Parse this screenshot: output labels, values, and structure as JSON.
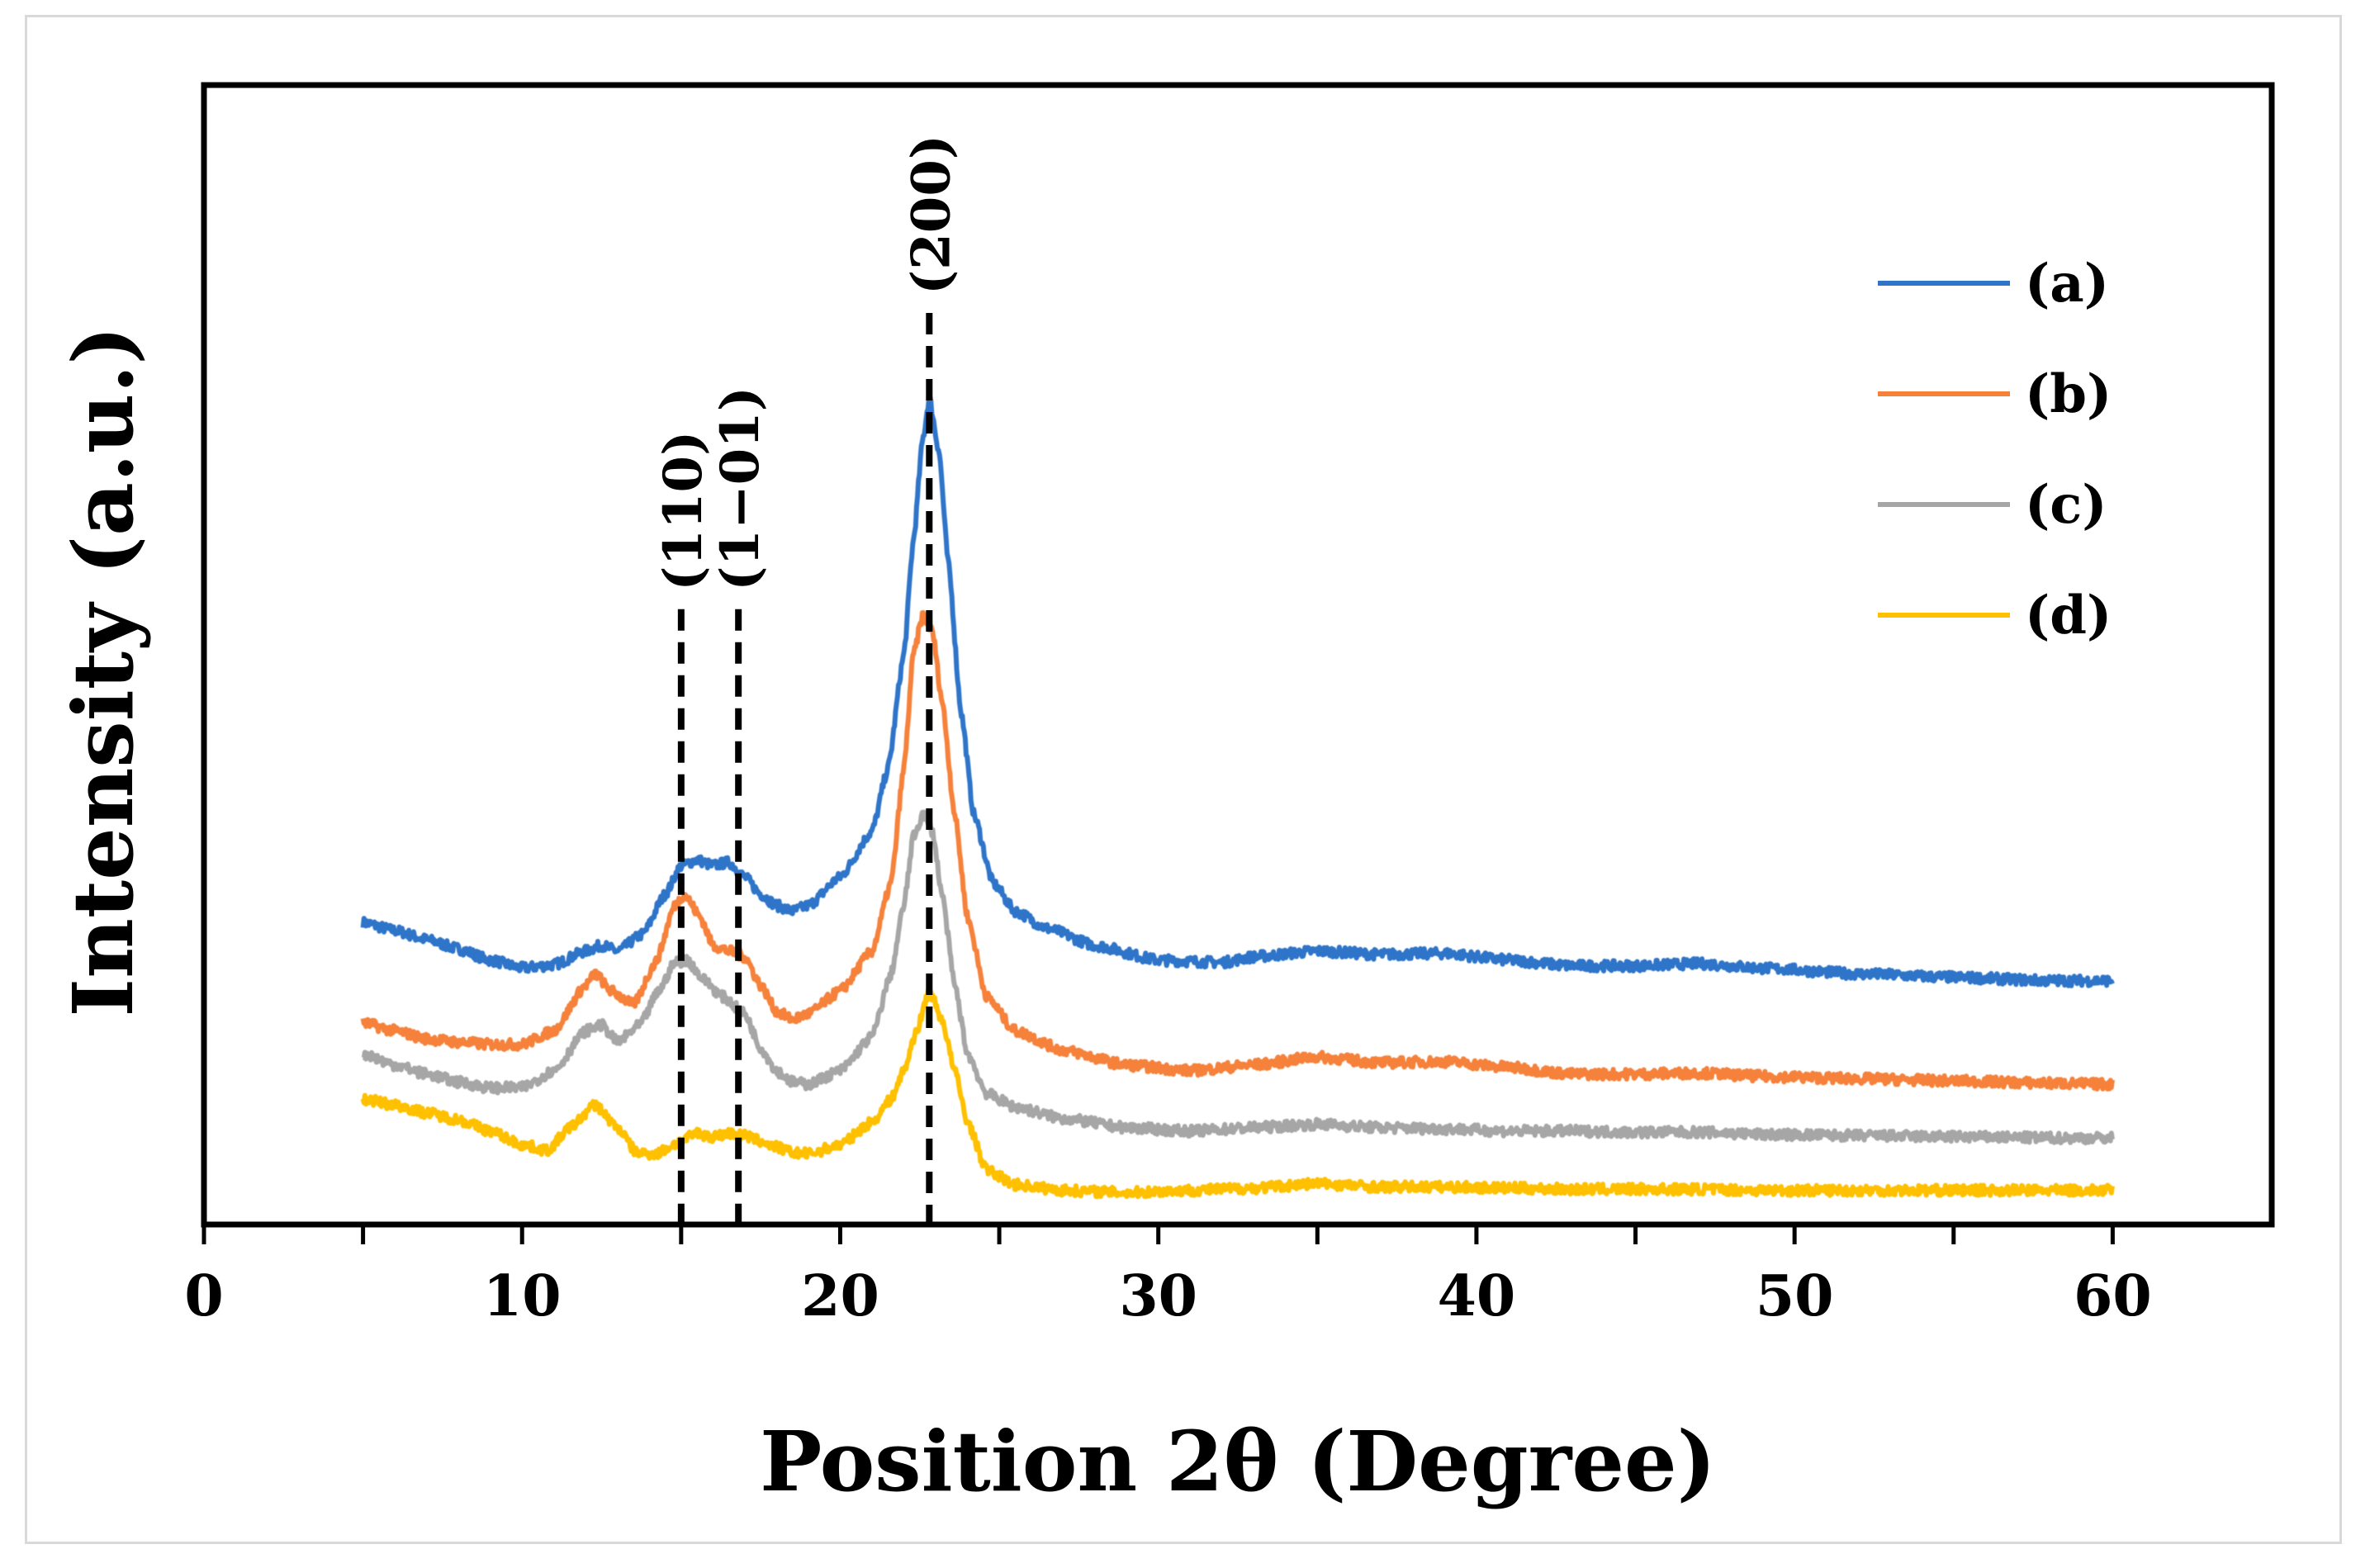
{
  "chart_data": {
    "type": "line",
    "title": "",
    "xlabel": "Position 2θ (Degree)",
    "ylabel": "Intensity (a.u.)",
    "xlim": [
      0,
      65
    ],
    "ylim": [
      0,
      100
    ],
    "x_ticks": [
      0,
      10,
      20,
      30,
      40,
      50,
      60
    ],
    "y_ticks_shown": false,
    "grid": false,
    "legend_position": "top-right",
    "peak_markers": [
      {
        "label": "(110)",
        "x": 15.0,
        "top": 54
      },
      {
        "label": "(1−01)",
        "x": 16.8,
        "top": 54
      },
      {
        "label": "(200)",
        "x": 22.8,
        "top": 80
      }
    ],
    "series": [
      {
        "name": "(a)",
        "color": "#2e75c9",
        "points": [
          [
            5,
            26.5
          ],
          [
            6,
            25.8
          ],
          [
            7,
            25
          ],
          [
            8,
            24.2
          ],
          [
            9,
            23.2
          ],
          [
            10,
            22.5
          ],
          [
            11,
            22.8
          ],
          [
            12,
            24
          ],
          [
            12.5,
            24.5
          ],
          [
            13,
            24
          ],
          [
            13.8,
            25.5
          ],
          [
            14.5,
            29
          ],
          [
            15,
            31.5
          ],
          [
            15.5,
            32
          ],
          [
            16,
            31.5
          ],
          [
            16.5,
            31.8
          ],
          [
            17,
            30.5
          ],
          [
            17.5,
            29
          ],
          [
            18,
            28
          ],
          [
            18.5,
            27.5
          ],
          [
            19,
            28
          ],
          [
            20,
            30.5
          ],
          [
            21,
            34.5
          ],
          [
            21.5,
            40
          ],
          [
            22,
            50
          ],
          [
            22.3,
            60
          ],
          [
            22.6,
            69
          ],
          [
            22.8,
            72.5
          ],
          [
            23.1,
            68
          ],
          [
            23.4,
            58
          ],
          [
            23.8,
            45
          ],
          [
            24.2,
            36
          ],
          [
            24.8,
            30
          ],
          [
            25.5,
            27.5
          ],
          [
            26.5,
            26
          ],
          [
            28,
            24.5
          ],
          [
            30,
            23.2
          ],
          [
            32,
            23
          ],
          [
            33,
            23.5
          ],
          [
            35,
            24
          ],
          [
            37,
            23.7
          ],
          [
            39,
            23.8
          ],
          [
            41,
            23.2
          ],
          [
            43,
            22.7
          ],
          [
            45,
            22.7
          ],
          [
            47,
            22.9
          ],
          [
            49,
            22.5
          ],
          [
            52,
            22
          ],
          [
            55,
            21.7
          ],
          [
            58,
            21.4
          ],
          [
            60,
            21.4
          ]
        ]
      },
      {
        "name": "(b)",
        "color": "#f5813a",
        "points": [
          [
            5,
            17.7
          ],
          [
            6,
            17
          ],
          [
            7,
            16.3
          ],
          [
            8,
            16
          ],
          [
            9,
            15.8
          ],
          [
            10,
            15.8
          ],
          [
            11,
            17
          ],
          [
            12,
            21
          ],
          [
            12.3,
            22
          ],
          [
            12.8,
            20.5
          ],
          [
            13.5,
            19.3
          ],
          [
            14.2,
            23
          ],
          [
            14.8,
            28
          ],
          [
            15.1,
            29
          ],
          [
            15.6,
            27
          ],
          [
            16,
            24.5
          ],
          [
            16.5,
            24
          ],
          [
            17,
            23.5
          ],
          [
            17.5,
            21
          ],
          [
            18,
            18.7
          ],
          [
            18.5,
            18
          ],
          [
            19,
            18.5
          ],
          [
            20,
            20.5
          ],
          [
            21,
            24
          ],
          [
            21.6,
            30
          ],
          [
            22,
            40
          ],
          [
            22.3,
            50
          ],
          [
            22.6,
            53.5
          ],
          [
            22.9,
            52
          ],
          [
            23.2,
            46
          ],
          [
            23.6,
            36
          ],
          [
            24,
            27
          ],
          [
            24.6,
            20
          ],
          [
            25.5,
            17
          ],
          [
            27,
            15.3
          ],
          [
            29,
            14
          ],
          [
            31,
            13.5
          ],
          [
            33,
            14
          ],
          [
            35,
            14.7
          ],
          [
            37,
            14.2
          ],
          [
            39,
            14.3
          ],
          [
            41,
            13.8
          ],
          [
            43,
            13.2
          ],
          [
            45,
            13.2
          ],
          [
            47,
            13.3
          ],
          [
            49,
            13
          ],
          [
            52,
            12.8
          ],
          [
            55,
            12.6
          ],
          [
            58,
            12.4
          ],
          [
            60,
            12.3
          ]
        ]
      },
      {
        "name": "(c)",
        "color": "#a6a6a6",
        "points": [
          [
            5,
            15
          ],
          [
            6,
            14
          ],
          [
            7,
            13.2
          ],
          [
            8,
            12.5
          ],
          [
            9,
            12
          ],
          [
            10,
            12
          ],
          [
            11,
            13.5
          ],
          [
            12,
            17
          ],
          [
            12.5,
            17.5
          ],
          [
            13,
            16
          ],
          [
            13.7,
            17.5
          ],
          [
            14.3,
            20.5
          ],
          [
            14.8,
            23
          ],
          [
            15.2,
            23.2
          ],
          [
            15.7,
            21.5
          ],
          [
            16.3,
            20
          ],
          [
            17,
            18.5
          ],
          [
            17.5,
            15.5
          ],
          [
            18,
            13.5
          ],
          [
            18.5,
            12.5
          ],
          [
            19,
            12.3
          ],
          [
            20,
            13.5
          ],
          [
            21,
            16.5
          ],
          [
            21.6,
            22
          ],
          [
            22,
            28
          ],
          [
            22.3,
            34
          ],
          [
            22.6,
            36
          ],
          [
            22.9,
            34.5
          ],
          [
            23.2,
            29
          ],
          [
            23.6,
            21
          ],
          [
            24,
            15
          ],
          [
            24.6,
            11.5
          ],
          [
            25.5,
            10.3
          ],
          [
            27,
            9.3
          ],
          [
            29,
            8.5
          ],
          [
            31,
            8.2
          ],
          [
            33,
            8.5
          ],
          [
            35,
            8.8
          ],
          [
            37,
            8.5
          ],
          [
            39,
            8.4
          ],
          [
            41,
            8.2
          ],
          [
            43,
            8.2
          ],
          [
            45,
            8.1
          ],
          [
            47,
            8.1
          ],
          [
            49,
            7.9
          ],
          [
            52,
            7.8
          ],
          [
            55,
            7.7
          ],
          [
            58,
            7.6
          ],
          [
            60,
            7.6
          ]
        ]
      },
      {
        "name": "(d)",
        "color": "#ffc000",
        "points": [
          [
            5,
            11
          ],
          [
            6,
            10.5
          ],
          [
            7,
            9.8
          ],
          [
            8,
            9.2
          ],
          [
            9,
            8.2
          ],
          [
            10,
            7
          ],
          [
            10.8,
            6.5
          ],
          [
            11.5,
            8.5
          ],
          [
            12.3,
            10.5
          ],
          [
            13,
            8.5
          ],
          [
            13.6,
            6.3
          ],
          [
            14.2,
            6.2
          ],
          [
            15,
            7.3
          ],
          [
            15.5,
            8
          ],
          [
            16,
            7.7
          ],
          [
            16.5,
            8
          ],
          [
            17,
            7.8
          ],
          [
            17.5,
            7.3
          ],
          [
            18,
            6.8
          ],
          [
            18.5,
            6.3
          ],
          [
            19,
            6.2
          ],
          [
            20,
            7
          ],
          [
            21,
            9
          ],
          [
            21.6,
            11
          ],
          [
            22,
            13.5
          ],
          [
            22.4,
            17
          ],
          [
            22.8,
            20.5
          ],
          [
            23.2,
            18
          ],
          [
            23.6,
            13.5
          ],
          [
            24,
            9
          ],
          [
            24.6,
            4.8
          ],
          [
            25.5,
            3.5
          ],
          [
            27,
            3
          ],
          [
            29,
            2.8
          ],
          [
            31,
            3
          ],
          [
            33,
            3.2
          ],
          [
            35,
            3.6
          ],
          [
            37,
            3.3
          ],
          [
            39,
            3.3
          ],
          [
            41,
            3.2
          ],
          [
            43,
            3.1
          ],
          [
            45,
            3.1
          ],
          [
            47,
            3.1
          ],
          [
            49,
            3
          ],
          [
            52,
            3
          ],
          [
            55,
            3
          ],
          [
            58,
            3
          ],
          [
            60,
            3
          ]
        ]
      }
    ]
  }
}
